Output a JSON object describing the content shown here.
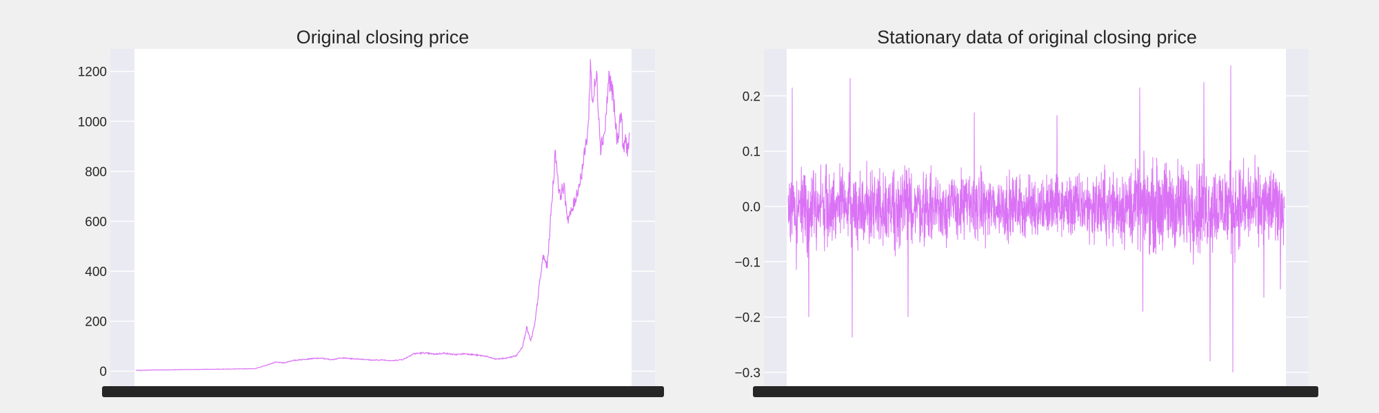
{
  "figure": {
    "background": "#f0f0f0"
  },
  "chart_data": [
    {
      "type": "line",
      "title": "Original closing price",
      "xlabel": "",
      "ylabel": "",
      "ylim": [
        -60,
        1290
      ],
      "yticks": [
        0,
        200,
        400,
        600,
        800,
        1000,
        1200
      ],
      "ytick_labels": [
        "0",
        "200",
        "400",
        "600",
        "800",
        "1000",
        "1200"
      ],
      "grid": true,
      "plot_background": "#eaeaf2",
      "line_color": "#da72f5",
      "x_tick_labels_rendered": "illegible overlapping date labels",
      "n_points": 2400,
      "series": [
        {
          "x": [
            0,
            50,
            100,
            150,
            200,
            300,
            400,
            500,
            580,
            620,
            650,
            680,
            720,
            760,
            800,
            850,
            900,
            950,
            1000,
            1050,
            1100,
            1150,
            1200,
            1250,
            1300,
            1350,
            1400,
            1450,
            1500,
            1550,
            1600,
            1650,
            1700,
            1750,
            1800,
            1850,
            1880,
            1900,
            1920,
            1940,
            1960,
            1980,
            2000,
            2020,
            2040,
            2060,
            2080,
            2100,
            2120,
            2140,
            2160,
            2180,
            2200,
            2210,
            2220,
            2240,
            2260,
            2280,
            2300,
            2320,
            2340,
            2360,
            2370,
            2380,
            2390,
            2400
          ],
          "y": [
            3,
            4,
            5,
            5,
            6,
            7,
            8,
            9,
            10,
            20,
            28,
            36,
            33,
            42,
            46,
            50,
            52,
            46,
            53,
            50,
            48,
            44,
            45,
            42,
            47,
            70,
            73,
            68,
            72,
            66,
            70,
            65,
            60,
            48,
            52,
            62,
            100,
            175,
            120,
            190,
            330,
            460,
            420,
            650,
            880,
            700,
            740,
            610,
            640,
            700,
            760,
            860,
            980,
            1230,
            1080,
            1180,
            900,
            960,
            1180,
            1100,
            920,
            1040,
            870,
            930,
            890,
            920
          ]
        }
      ]
    },
    {
      "type": "line",
      "title": "Stationary data of original closing price",
      "xlabel": "",
      "ylabel": "",
      "ylim": [
        -0.325,
        0.285
      ],
      "yticks": [
        -0.3,
        -0.2,
        -0.1,
        0.0,
        0.1,
        0.2
      ],
      "ytick_labels": [
        "−0.3",
        "−0.2",
        "−0.1",
        "0.0",
        "0.1",
        "0.2"
      ],
      "grid": true,
      "plot_background": "#eaeaf2",
      "line_color": "#da72f5",
      "x_tick_labels_rendered": "illegible overlapping date labels",
      "n_points": 2400,
      "volatility_profile": {
        "x": [
          0,
          200,
          400,
          600,
          800,
          1000,
          1200,
          1400,
          1600,
          1800,
          2000,
          2200,
          2400
        ],
        "amplitude": [
          0.055,
          0.05,
          0.048,
          0.045,
          0.042,
          0.04,
          0.038,
          0.04,
          0.048,
          0.055,
          0.058,
          0.052,
          0.045
        ]
      },
      "extremes": [
        {
          "x": 20,
          "y": 0.215
        },
        {
          "x": 40,
          "y": -0.115
        },
        {
          "x": 100,
          "y": -0.2
        },
        {
          "x": 300,
          "y": 0.232
        },
        {
          "x": 310,
          "y": -0.237
        },
        {
          "x": 580,
          "y": -0.2
        },
        {
          "x": 900,
          "y": 0.17
        },
        {
          "x": 1300,
          "y": 0.165
        },
        {
          "x": 1700,
          "y": 0.215
        },
        {
          "x": 1715,
          "y": -0.19
        },
        {
          "x": 2010,
          "y": 0.225
        },
        {
          "x": 2040,
          "y": -0.28
        },
        {
          "x": 2140,
          "y": 0.255
        },
        {
          "x": 2150,
          "y": -0.3
        },
        {
          "x": 2300,
          "y": -0.165
        },
        {
          "x": 2380,
          "y": -0.15
        }
      ]
    }
  ]
}
